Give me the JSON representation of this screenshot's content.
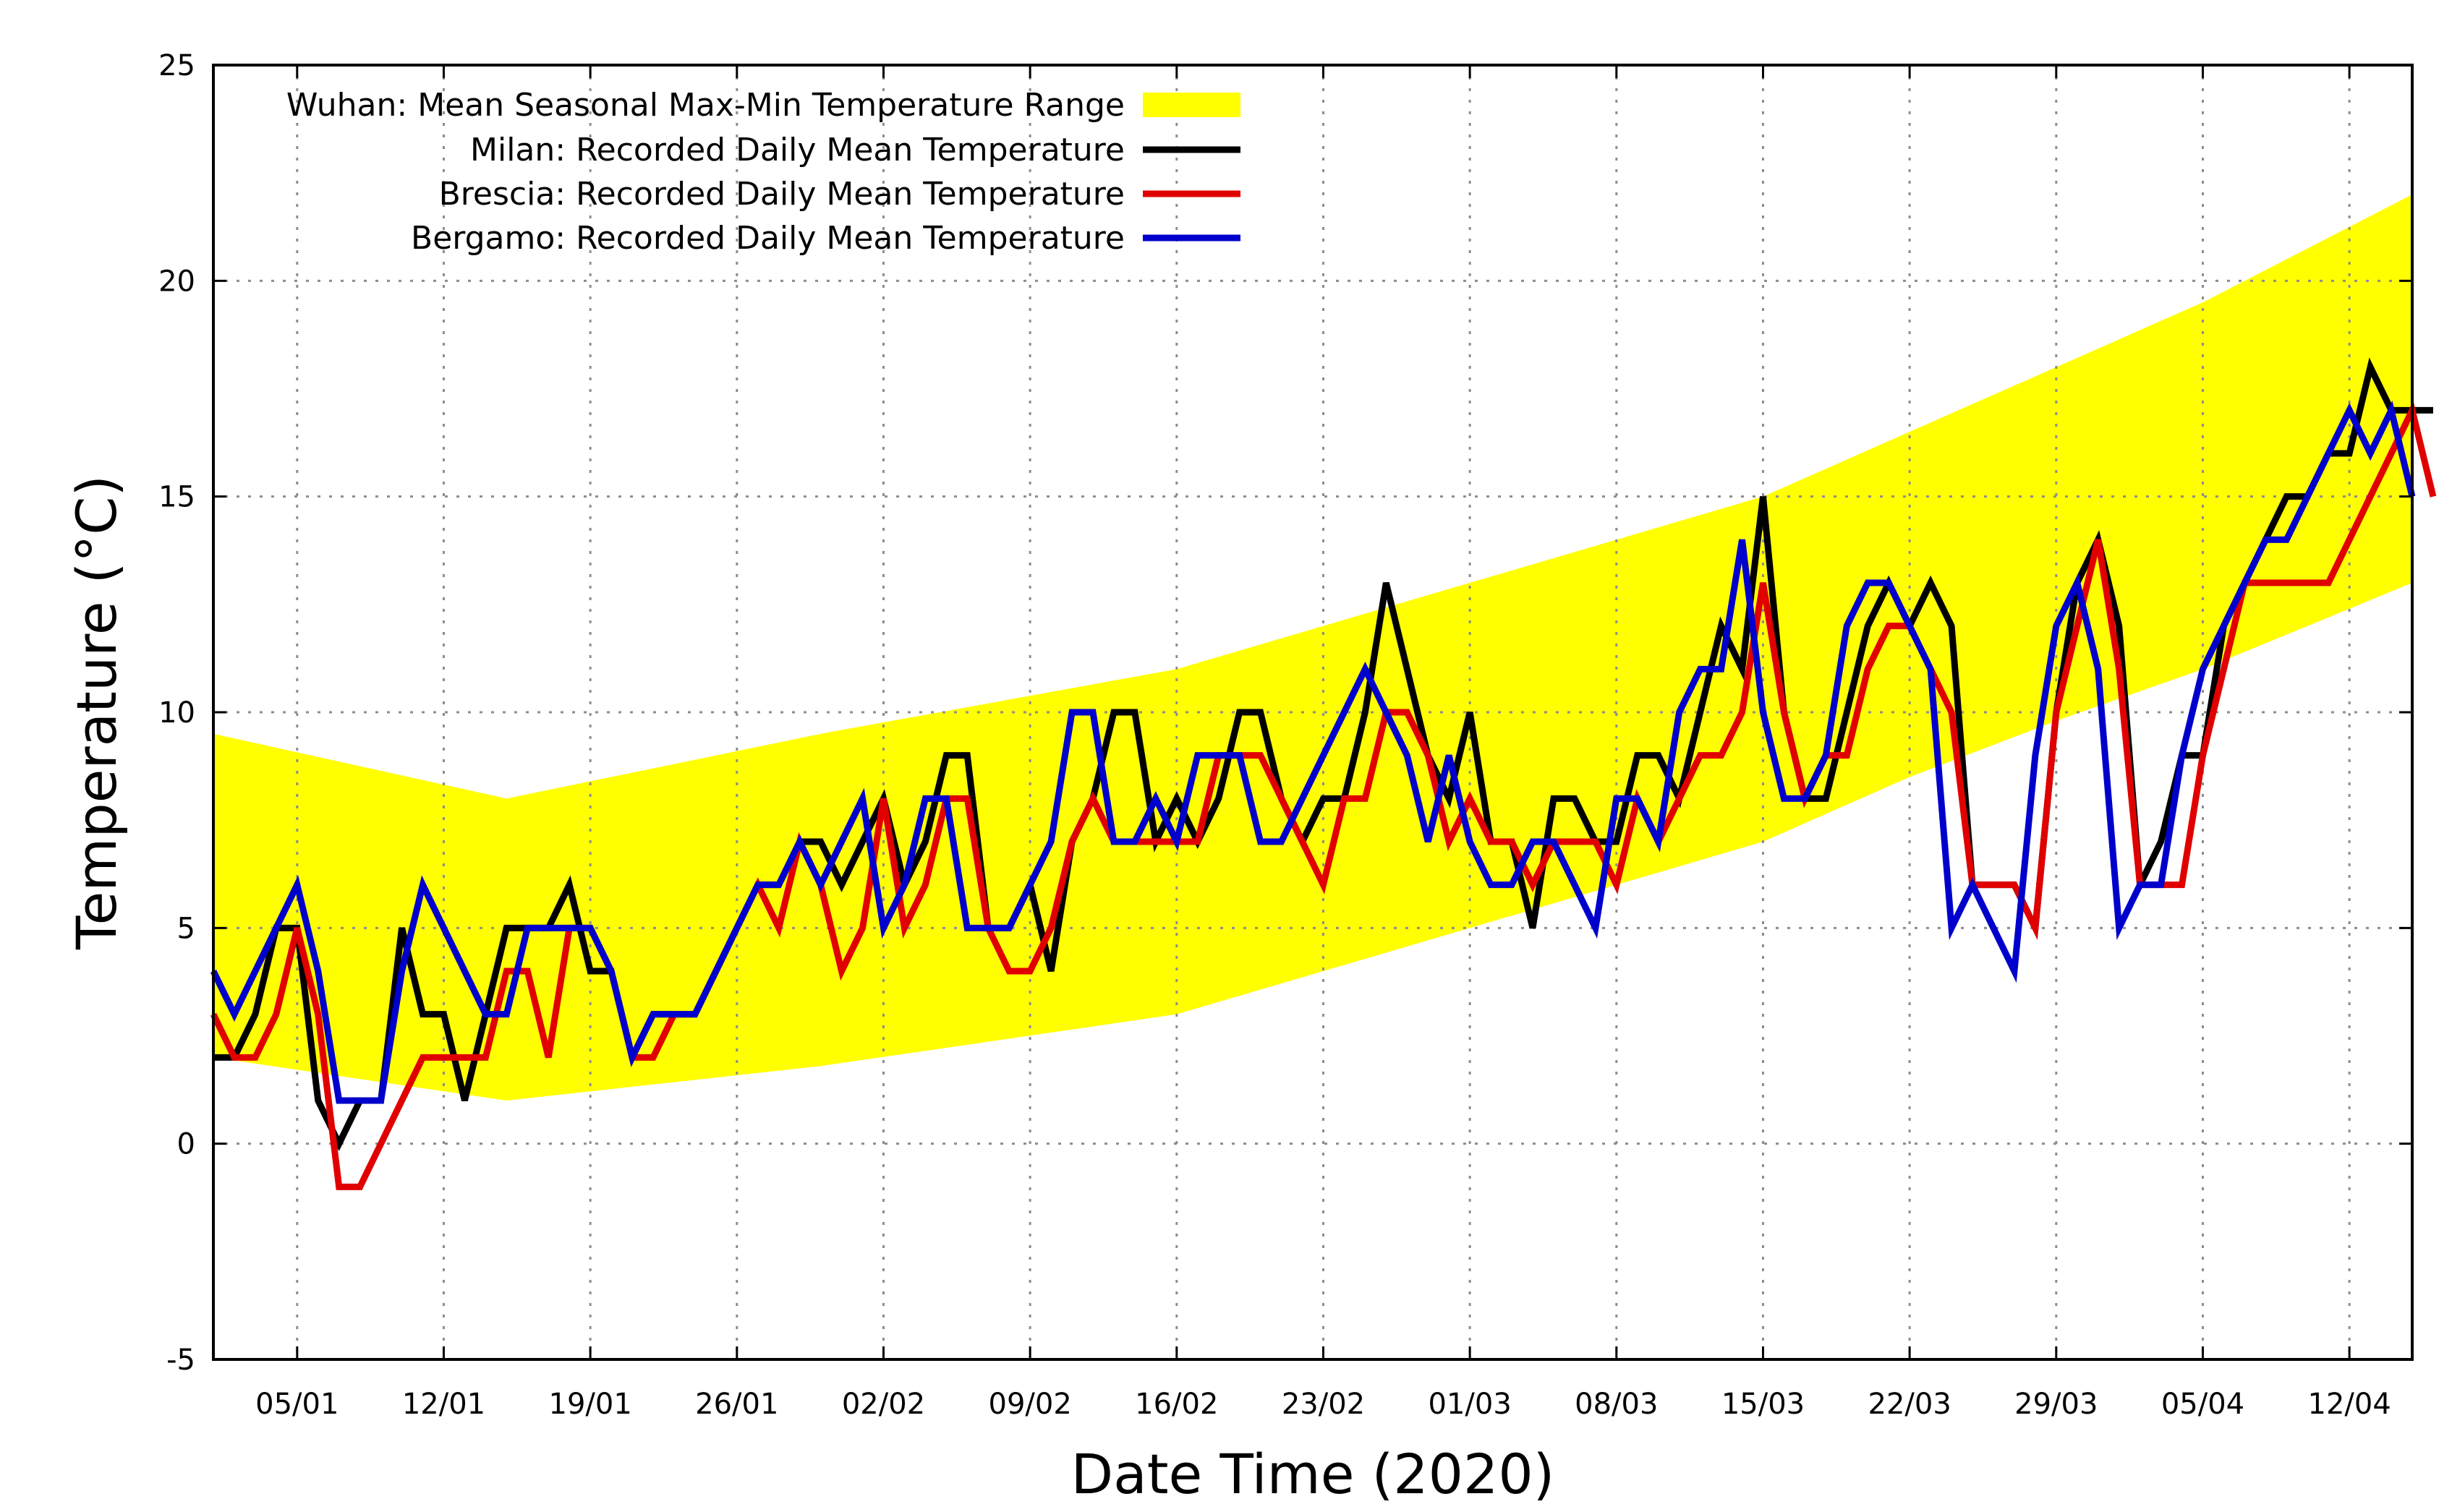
{
  "chart_data": {
    "type": "line",
    "title": "",
    "xlabel": "Date Time (2020)",
    "ylabel": "Temperature (°C)",
    "ylim": [
      -5,
      25
    ],
    "xlim_day_of_year": [
      1,
      106
    ],
    "yticks": [
      -5,
      0,
      5,
      10,
      15,
      20,
      25
    ],
    "xticks": [
      {
        "label": "05/01",
        "day": 5
      },
      {
        "label": "12/01",
        "day": 12
      },
      {
        "label": "19/01",
        "day": 19
      },
      {
        "label": "26/01",
        "day": 26
      },
      {
        "label": "02/02",
        "day": 33
      },
      {
        "label": "09/02",
        "day": 40
      },
      {
        "label": "16/02",
        "day": 47
      },
      {
        "label": "23/02",
        "day": 54
      },
      {
        "label": "01/03",
        "day": 61
      },
      {
        "label": "08/03",
        "day": 68
      },
      {
        "label": "15/03",
        "day": 75
      },
      {
        "label": "22/03",
        "day": 82
      },
      {
        "label": "29/03",
        "day": 89
      },
      {
        "label": "05/04",
        "day": 96
      },
      {
        "label": "12/04",
        "day": 103
      }
    ],
    "grid": true,
    "legend_position": "top-left",
    "band": {
      "name": "Wuhan: Mean Seasonal Max-Min Temperature Range",
      "color": "#ffff00",
      "x_day": [
        1,
        15,
        30,
        47,
        61,
        75,
        82,
        89,
        96,
        106
      ],
      "upper": [
        9.5,
        8.0,
        9.5,
        11.0,
        13.0,
        15.0,
        16.5,
        18.0,
        19.5,
        22.0
      ],
      "lower": [
        2.0,
        1.0,
        1.8,
        3.0,
        5.0,
        7.0,
        8.5,
        9.8,
        11.0,
        13.0
      ]
    },
    "series": [
      {
        "name": "Milan: Recorded Daily Mean Temperature",
        "color": "#000000",
        "x_day_start": 1,
        "values": [
          2,
          2,
          3,
          5,
          5,
          1,
          0,
          1,
          1,
          5,
          3,
          3,
          1,
          3,
          5,
          5,
          5,
          6,
          4,
          4,
          2,
          3,
          3,
          3,
          4,
          5,
          6,
          6,
          7,
          7,
          6,
          7,
          8,
          6,
          7,
          9,
          9,
          5,
          5,
          6,
          4,
          7,
          8,
          10,
          10,
          7,
          8,
          7,
          8,
          10,
          10,
          8,
          7,
          8,
          8,
          10,
          13,
          11,
          9,
          8,
          10,
          7,
          7,
          5,
          8,
          8,
          7,
          7,
          9,
          9,
          8,
          10,
          12,
          11,
          15,
          10,
          8,
          8,
          10,
          12,
          13,
          12,
          13,
          12,
          6,
          6,
          6,
          5,
          10,
          13,
          14,
          12,
          6,
          7,
          9,
          9,
          12,
          13,
          14,
          15,
          15,
          16,
          16,
          18,
          17,
          17,
          17
        ]
      },
      {
        "name": "Brescia: Recorded Daily Mean Temperature",
        "color": "#e00000",
        "x_day_start": 1,
        "values": [
          3,
          2,
          2,
          3,
          5,
          3,
          -1,
          -1,
          0,
          1,
          2,
          2,
          2,
          2,
          4,
          4,
          2,
          5,
          5,
          4,
          2,
          2,
          3,
          3,
          4,
          5,
          6,
          5,
          7,
          6,
          4,
          5,
          8,
          5,
          6,
          8,
          8,
          5,
          4,
          4,
          5,
          7,
          8,
          7,
          7,
          7,
          7,
          7,
          9,
          9,
          9,
          8,
          7,
          6,
          8,
          8,
          10,
          10,
          9,
          7,
          8,
          7,
          7,
          6,
          7,
          7,
          7,
          6,
          8,
          7,
          8,
          9,
          9,
          10,
          13,
          10,
          8,
          9,
          9,
          11,
          12,
          12,
          11,
          10,
          6,
          6,
          6,
          5,
          10,
          12,
          14,
          11,
          6,
          6,
          6,
          9,
          11,
          13,
          13,
          13,
          13,
          13,
          14,
          15,
          16,
          17,
          15
        ]
      },
      {
        "name": "Bergamo: Recorded Daily Mean Temperature",
        "color": "#0000cc",
        "x_day_start": 1,
        "values": [
          4,
          3,
          4,
          5,
          6,
          4,
          1,
          1,
          1,
          4,
          6,
          5,
          4,
          3,
          3,
          5,
          5,
          5,
          5,
          4,
          2,
          3,
          3,
          3,
          4,
          5,
          6,
          6,
          7,
          6,
          7,
          8,
          5,
          6,
          8,
          8,
          5,
          5,
          5,
          6,
          7,
          10,
          10,
          7,
          7,
          8,
          7,
          9,
          9,
          9,
          7,
          7,
          8,
          9,
          10,
          11,
          10,
          9,
          7,
          9,
          7,
          6,
          6,
          7,
          7,
          6,
          5,
          8,
          8,
          7,
          10,
          11,
          11,
          14,
          10,
          8,
          8,
          9,
          12,
          13,
          13,
          12,
          11,
          5,
          6,
          5,
          4,
          9,
          12,
          13,
          11,
          5,
          6,
          6,
          9,
          11,
          12,
          13,
          14,
          14,
          15,
          16,
          17,
          16,
          17,
          15
        ]
      }
    ]
  }
}
